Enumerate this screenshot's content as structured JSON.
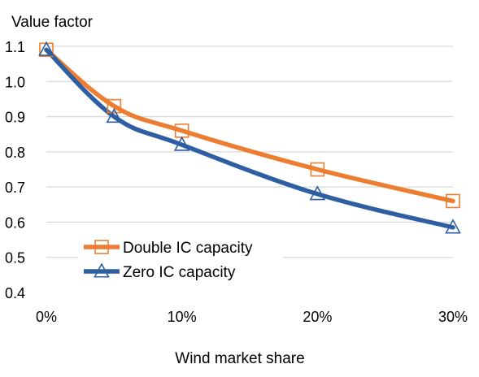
{
  "chart_data": {
    "type": "line",
    "title": "Value factor",
    "xlabel": "Wind market share",
    "ylabel": "",
    "x": [
      0,
      5,
      10,
      20,
      30
    ],
    "x_ticks": [
      0,
      10,
      20,
      30
    ],
    "x_tick_labels": [
      "0%",
      "10%",
      "20%",
      "30%"
    ],
    "xlim": [
      0,
      30
    ],
    "ylim": [
      0.4,
      1.1
    ],
    "y_ticks": [
      0.4,
      0.5,
      0.6,
      0.7,
      0.8,
      0.9,
      1.0,
      1.1
    ],
    "y_tick_labels": [
      "0.4",
      "0.5",
      "0.6",
      "0.7",
      "0.8",
      "0.9",
      "1.0",
      "1.1"
    ],
    "grid": true,
    "legend_position": "bottom-left",
    "series": [
      {
        "name": "Double IC capacity",
        "values": [
          1.09,
          0.93,
          0.86,
          0.75,
          0.66
        ],
        "color": "#ED7D31",
        "marker": "square"
      },
      {
        "name": "Zero IC capacity",
        "values": [
          1.09,
          0.9,
          0.82,
          0.68,
          0.585
        ],
        "color": "#2E5FA3",
        "marker": "triangle"
      }
    ]
  }
}
